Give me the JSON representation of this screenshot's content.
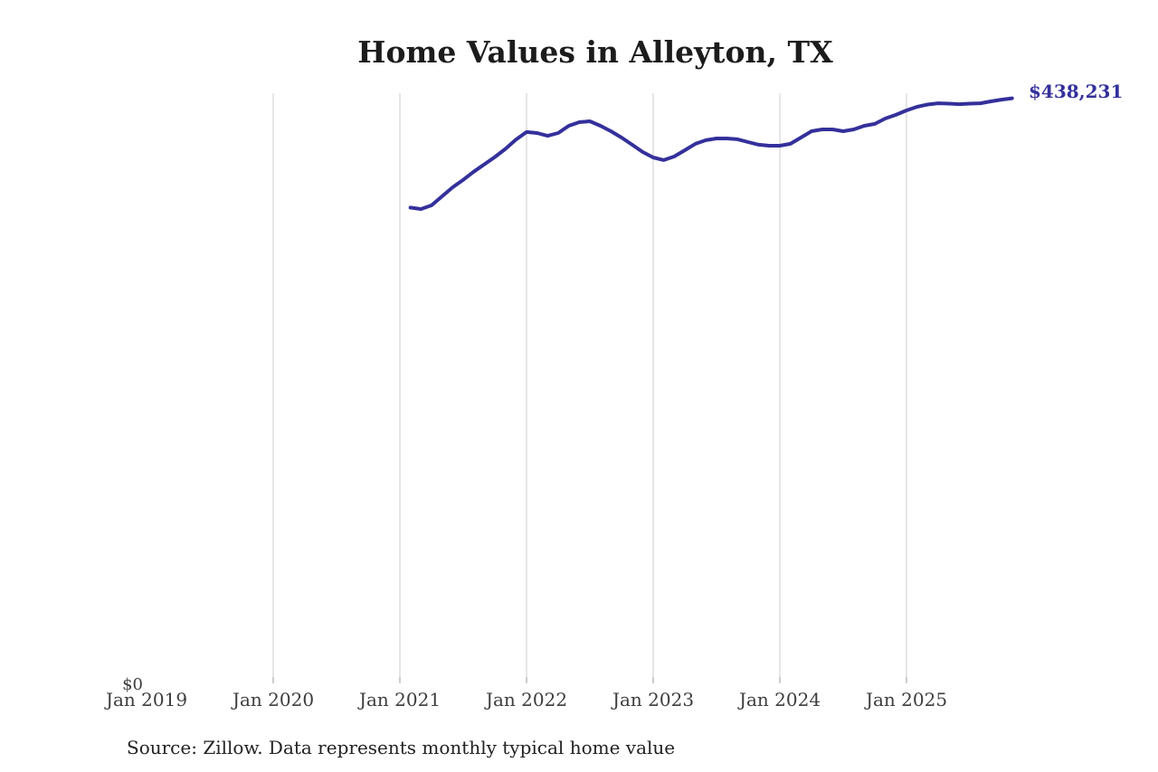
{
  "chart_data": {
    "type": "line",
    "title": "Home Values in Alleyton, TX",
    "series_name": "Monthly typical home value",
    "x_tick_labels": [
      "Jan 2019",
      "Jan 2020",
      "Jan 2021",
      "Jan 2022",
      "Jan 2023",
      "Jan 2024",
      "Jan 2025"
    ],
    "y_tick_labels": [
      "$0"
    ],
    "latest_value_label": "$438,231",
    "latest_value": 438231,
    "ylim": [
      0,
      442000
    ],
    "x_start": "2021-02",
    "x_end": "2025-11",
    "months": [
      "2021-02",
      "2021-03",
      "2021-04",
      "2021-05",
      "2021-06",
      "2021-07",
      "2021-08",
      "2021-09",
      "2021-10",
      "2021-11",
      "2021-12",
      "2022-01",
      "2022-02",
      "2022-03",
      "2022-04",
      "2022-05",
      "2022-06",
      "2022-07",
      "2022-08",
      "2022-09",
      "2022-10",
      "2022-11",
      "2022-12",
      "2023-01",
      "2023-02",
      "2023-03",
      "2023-04",
      "2023-05",
      "2023-06",
      "2023-07",
      "2023-08",
      "2023-09",
      "2023-10",
      "2023-11",
      "2023-12",
      "2024-01",
      "2024-02",
      "2024-03",
      "2024-04",
      "2024-05",
      "2024-06",
      "2024-07",
      "2024-08",
      "2024-09",
      "2024-10",
      "2024-11",
      "2024-12",
      "2025-01",
      "2025-02",
      "2025-03",
      "2025-04",
      "2025-05",
      "2025-06",
      "2025-07",
      "2025-08",
      "2025-09",
      "2025-10",
      "2025-11"
    ],
    "values": [
      356300,
      355200,
      358000,
      364800,
      371500,
      377100,
      383200,
      388700,
      394200,
      400300,
      407200,
      412900,
      412200,
      410100,
      412200,
      417600,
      420300,
      421000,
      417600,
      413500,
      408800,
      403400,
      398000,
      393900,
      391900,
      394600,
      399300,
      404100,
      406800,
      408100,
      408100,
      407500,
      405400,
      403400,
      402700,
      402700,
      404100,
      408800,
      413500,
      414900,
      414900,
      413500,
      414900,
      417600,
      419000,
      423100,
      425800,
      429100,
      431800,
      433500,
      434500,
      434200,
      433800,
      434200,
      434500,
      435900,
      437200,
      438231
    ],
    "grid": "vertical",
    "legend": "none",
    "source_note": "Source: Zillow. Data represents monthly typical home value"
  },
  "colors": {
    "accent": "#34309b",
    "grid": "#cccccc",
    "tick": "#999999",
    "axis_label": "#3d3d3d",
    "title": "#1c1c1c",
    "source": "#222222",
    "background": "#ffffff"
  }
}
